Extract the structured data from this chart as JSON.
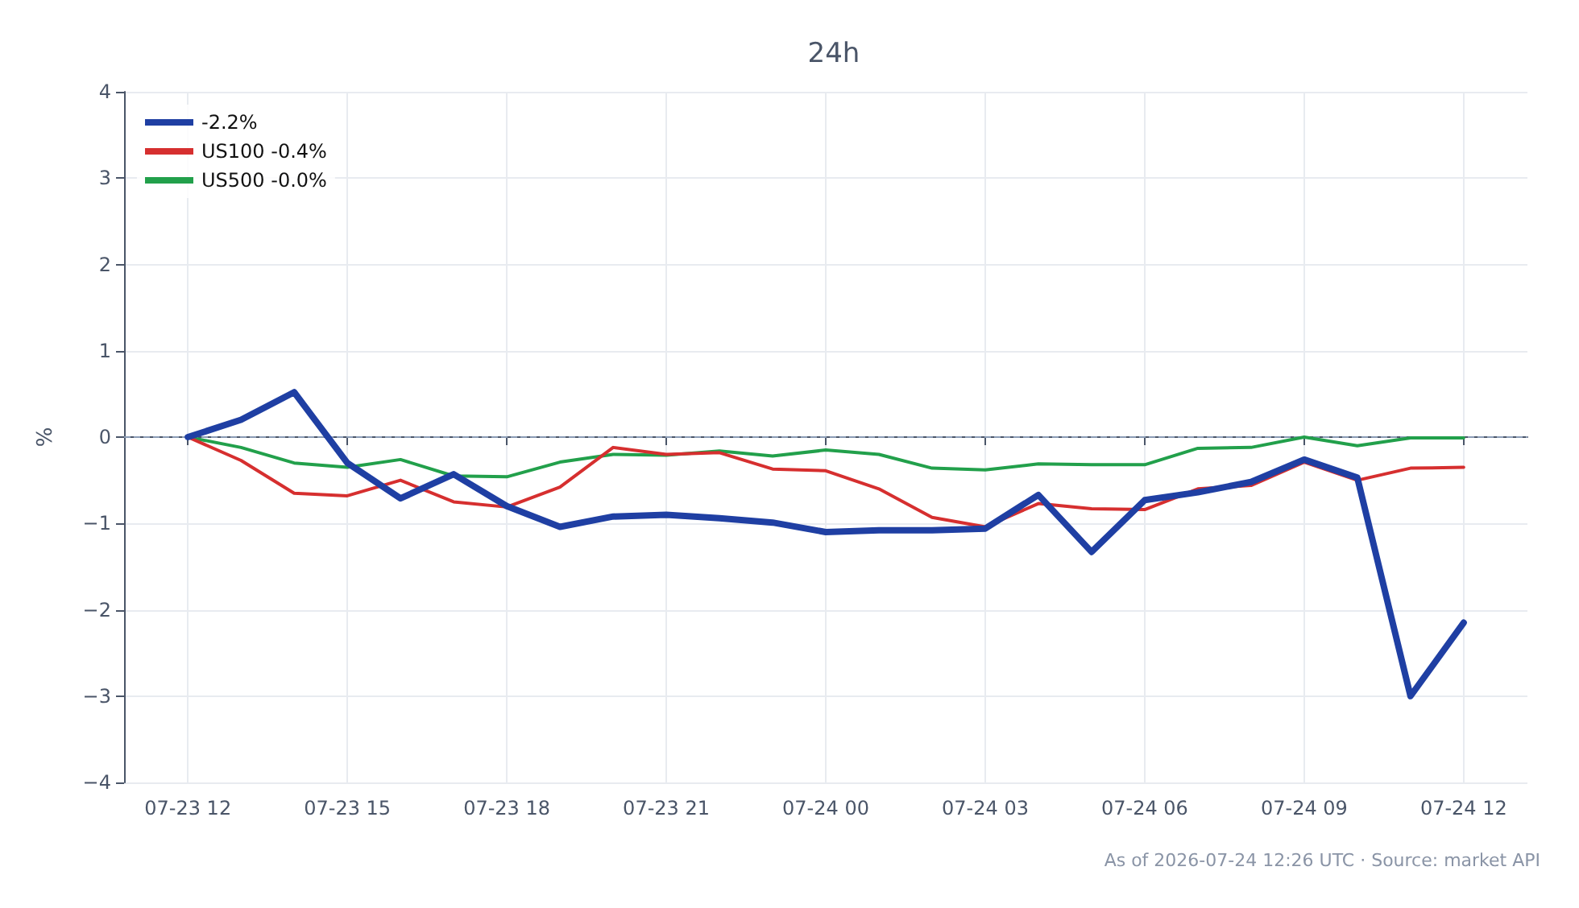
{
  "chart_data": {
    "type": "line",
    "title": "24h",
    "ylabel": "%",
    "annotations": [
      "As of 2026-07-24 12:26 UTC · Source: market API"
    ],
    "x": [
      "--07-23T12:00",
      "--07-23T13:00",
      "--07-23T14:00",
      "--07-23T15:00",
      "--07-23T16:00",
      "--07-23T17:00",
      "--07-23T18:00",
      "--07-23T19:00",
      "--07-23T20:00",
      "--07-23T21:00",
      "--07-23T22:00",
      "--07-23T23:00",
      "--07-24T00:00",
      "--07-24T01:00",
      "--07-24T02:00",
      "--07-24T03:00",
      "--07-24T04:00",
      "--07-24T05:00",
      "--07-24T06:00",
      "--07-24T07:00",
      "--07-24T08:00",
      "--07-24T09:00",
      "--07-24T10:00",
      "--07-24T11:00",
      "--07-24T12:00"
    ],
    "series": [
      {
        "name": "-2.2%",
        "color": "#1f3fa3",
        "values": [
          0,
          0.2,
          0.52,
          -0.3,
          -0.71,
          -0.43,
          -0.8,
          -1.04,
          -0.92,
          -0.9,
          -0.94,
          -0.99,
          -1.1,
          -1.08,
          -1.08,
          -1.06,
          -0.67,
          -1.33,
          -0.73,
          -0.64,
          -0.52,
          -0.26,
          -0.47,
          -3.0,
          -2.15
        ]
      },
      {
        "name": "US100 -0.4%",
        "color": "#d62f2f",
        "values": [
          0,
          -0.27,
          -0.65,
          -0.68,
          -0.5,
          -0.75,
          -0.81,
          -0.58,
          -0.12,
          -0.2,
          -0.18,
          -0.37,
          -0.39,
          -0.6,
          -0.93,
          -1.04,
          -0.77,
          -0.83,
          -0.84,
          -0.6,
          -0.56,
          -0.29,
          -0.5,
          -0.36,
          -0.35
        ]
      },
      {
        "name": "US500 -0.0%",
        "color": "#22a04b",
        "values": [
          0,
          -0.12,
          -0.3,
          -0.35,
          -0.26,
          -0.45,
          -0.46,
          -0.29,
          -0.2,
          -0.21,
          -0.16,
          -0.22,
          -0.15,
          -0.2,
          -0.36,
          -0.38,
          -0.31,
          -0.32,
          -0.32,
          -0.13,
          -0.12,
          0,
          -0.1,
          -0.01,
          -0.01
        ]
      }
    ],
    "xlim": [
      "--07-23T10:48",
      "--07-24T13:12"
    ],
    "xticks": [
      {
        "value": "--07-23T12:00",
        "label": "07-23 12"
      },
      {
        "value": "--07-23T15:00",
        "label": "07-23 15"
      },
      {
        "value": "--07-23T18:00",
        "label": "07-23 18"
      },
      {
        "value": "--07-23T21:00",
        "label": "07-23 21"
      },
      {
        "value": "--07-24T00:00",
        "label": "07-24 00"
      },
      {
        "value": "--07-24T03:00",
        "label": "07-24 03"
      },
      {
        "value": "--07-24T06:00",
        "label": "07-24 06"
      },
      {
        "value": "--07-24T09:00",
        "label": "07-24 09"
      },
      {
        "value": "--07-24T12:00",
        "label": "07-24 12"
      }
    ],
    "ylim": [
      -4,
      4
    ],
    "yticks": [
      {
        "value": -4,
        "label": "−4"
      },
      {
        "value": -3,
        "label": "−3"
      },
      {
        "value": -2,
        "label": "−2"
      },
      {
        "value": -1,
        "label": "−1"
      },
      0,
      1,
      2,
      3,
      4
    ],
    "ref_lines": [
      {
        "axis": "y",
        "value": 0,
        "label": null,
        "color": "#8a9bb5",
        "line_style": "dashed"
      }
    ],
    "grid": true,
    "legend": "top left",
    "marker": "none",
    "line_style": "solid"
  }
}
